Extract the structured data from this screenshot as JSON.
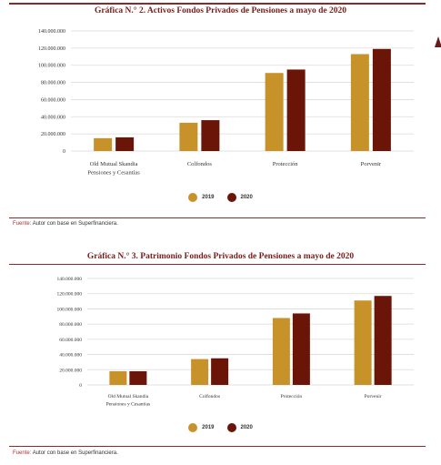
{
  "chart1": {
    "title": "Gráfica N.° 2. Activos Fondos Privados de Pensiones a mayo de 2020",
    "source_label": "Fuente:",
    "source_text": "Autor con base en Superfinanciera."
  },
  "chart2": {
    "title": "Gráfica N.° 3. Patrimonio Fondos Privados de Pensiones a mayo de 2020",
    "source_label": "Fuente:",
    "source_text": "Autor con base en Superfinanciera."
  },
  "colors": {
    "y2019": "#c8922a",
    "y2020": "#6b1408",
    "accent": "#8a2a2a"
  },
  "chart_data": [
    {
      "type": "bar",
      "title": "Gráfica N.° 2. Activos Fondos Privados de Pensiones a mayo de 2020",
      "categories": [
        [
          "Old Mutual Skandia",
          "Pensiones y Cesantías"
        ],
        [
          "Colfondos"
        ],
        [
          "Protección"
        ],
        [
          "Porvenir"
        ]
      ],
      "series": [
        {
          "name": "2019",
          "values": [
            15000000,
            33000000,
            91000000,
            113000000
          ]
        },
        {
          "name": "2020",
          "values": [
            16000000,
            36000000,
            95000000,
            119000000
          ]
        }
      ],
      "ylim": [
        0,
        140000000
      ],
      "yticks": [
        "0",
        "20.000.000",
        "40.000.000",
        "60.000.000",
        "80.000.000",
        "100.000.000",
        "120.000.000",
        "140.000.000"
      ],
      "grid": true,
      "legend": "bottom"
    },
    {
      "type": "bar",
      "title": "Gráfica N.° 3. Patrimonio Fondos Privados de Pensiones a mayo de 2020",
      "categories": [
        [
          "Old Mutual Skandia",
          "Pensiones y Cesantías"
        ],
        [
          "Colfondos"
        ],
        [
          "Protección"
        ],
        [
          "Porvenir"
        ]
      ],
      "series": [
        {
          "name": "2019",
          "values": [
            18000000,
            34000000,
            88000000,
            111000000
          ]
        },
        {
          "name": "2020",
          "values": [
            18000000,
            35000000,
            94000000,
            117000000
          ]
        }
      ],
      "ylim": [
        0,
        140000000
      ],
      "yticks": [
        "0",
        "20.000.000",
        "40.000.000",
        "60.000.000",
        "80.000.000",
        "100.000.000",
        "120.000.000",
        "140.000.000"
      ],
      "grid": true,
      "legend": "bottom"
    }
  ]
}
